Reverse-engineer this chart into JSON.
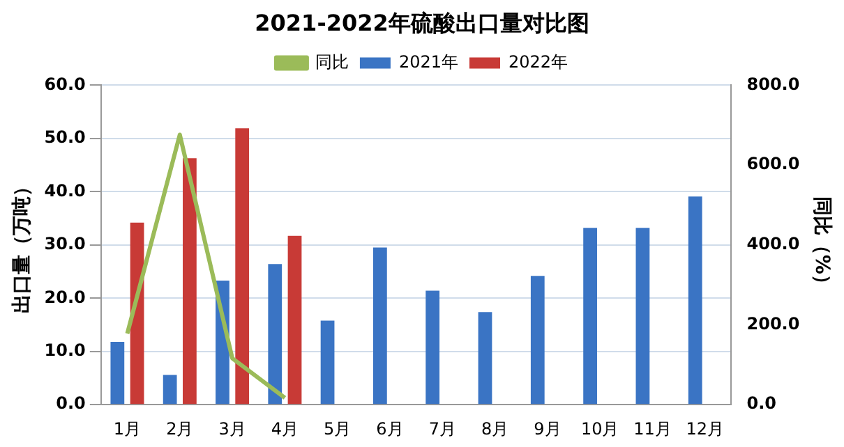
{
  "chart_data": {
    "type": "bar",
    "title": "2021-2022年硫酸出口量对比图",
    "ylabel": "出口量（万吨）",
    "y2label": "同比（%）",
    "categories": [
      "1月",
      "2月",
      "3月",
      "4月",
      "5月",
      "6月",
      "7月",
      "8月",
      "9月",
      "10月",
      "11月",
      "12月"
    ],
    "series": [
      {
        "name": "2021年",
        "color": "#3a74c4",
        "values": [
          11.8,
          5.6,
          23.3,
          26.4,
          15.8,
          29.5,
          21.4,
          17.4,
          24.2,
          33.2,
          33.2,
          39.1
        ]
      },
      {
        "name": "2022年",
        "color": "#c83a36",
        "values": [
          34.2,
          46.3,
          51.9,
          31.7,
          null,
          null,
          null,
          null,
          null,
          null,
          null,
          null
        ]
      },
      {
        "name": "同比",
        "type": "line",
        "axis": "y2",
        "color": "#9bbb59",
        "values": [
          178,
          676,
          116,
          17,
          null,
          null,
          null,
          null,
          null,
          null,
          null,
          null
        ]
      }
    ],
    "ylim": [
      0,
      60
    ],
    "yticks": [
      {
        "value": 0,
        "label": "0.0"
      },
      {
        "value": 10,
        "label": "10.0"
      },
      {
        "value": 20,
        "label": "20.0"
      },
      {
        "value": 30,
        "label": "30.0"
      },
      {
        "value": 40,
        "label": "40.0"
      },
      {
        "value": 50,
        "label": "50.0"
      },
      {
        "value": 60,
        "label": "60.0"
      }
    ],
    "y2lim": [
      0,
      800
    ],
    "y2ticks": [
      {
        "value": 0,
        "label": "0.0"
      },
      {
        "value": 200,
        "label": "200.0"
      },
      {
        "value": 400,
        "label": "400.0"
      },
      {
        "value": 600,
        "label": "600.0"
      },
      {
        "value": 800,
        "label": "800.0"
      }
    ],
    "grid": "y",
    "legend": "top",
    "marker": "none"
  }
}
